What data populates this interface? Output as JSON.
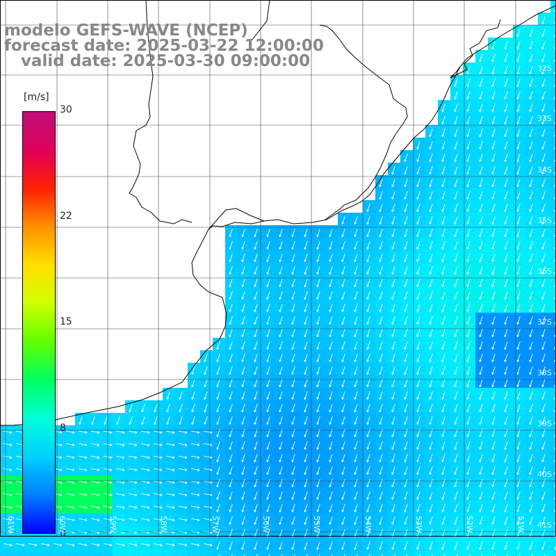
{
  "title": {
    "line1": "modelo GEFS-WAVE (NCEP)",
    "line2": "forecast date: 2025-03-22 12:00:00",
    "line3": "   valid date: 2025-03-30 09:00:00"
  },
  "colorbar": {
    "unit": "[m/s]",
    "ticks": [
      "30",
      "22",
      "15",
      "8",
      "0"
    ],
    "tick_values": [
      30,
      22,
      15,
      8,
      0
    ],
    "min": 0,
    "max": 30,
    "colors": [
      "#0000ff",
      "#0080ff",
      "#00d0ff",
      "#00ffd8",
      "#00ff60",
      "#60ff00",
      "#d0ff00",
      "#ffe000",
      "#ff9000",
      "#ff2000",
      "#e0005a",
      "#c0107a"
    ]
  },
  "lat_labels": [
    "32S",
    "33S",
    "34S",
    "35S",
    "36S",
    "37S",
    "38S",
    "39S",
    "40S",
    "41S"
  ],
  "lon_labels": [
    "61W",
    "60W",
    "59W",
    "58W",
    "57W",
    "56W",
    "55W",
    "54W",
    "53W",
    "52W",
    "51W"
  ],
  "colors": {
    "land": "#ffffff",
    "grid": "#444444",
    "coast": "#000000",
    "arrow": "#ffffff",
    "title": "#888888"
  }
}
